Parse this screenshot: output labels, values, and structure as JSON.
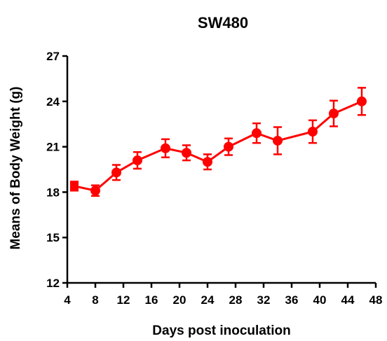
{
  "chart_data": {
    "type": "line",
    "title": "SW480",
    "xlabel": "Days post inoculation",
    "ylabel": "Means of Body Weight (g)",
    "xlim": [
      4,
      48
    ],
    "ylim": [
      12,
      27
    ],
    "xticks": [
      4,
      8,
      12,
      16,
      20,
      24,
      28,
      32,
      36,
      40,
      44,
      48
    ],
    "yticks": [
      12,
      15,
      18,
      21,
      24,
      27
    ],
    "grid": false,
    "legend": "none",
    "color": "#ff0000",
    "series": [
      {
        "x": [
          5,
          8,
          11,
          14,
          18,
          21,
          24,
          27,
          31,
          34,
          39,
          42,
          46
        ],
        "y": [
          18.4,
          18.1,
          19.3,
          20.1,
          20.9,
          20.6,
          20.0,
          21.0,
          21.9,
          21.4,
          22.0,
          23.2,
          24.0
        ],
        "err": [
          0.3,
          0.35,
          0.5,
          0.55,
          0.6,
          0.5,
          0.5,
          0.55,
          0.65,
          0.9,
          0.75,
          0.85,
          0.9
        ]
      }
    ]
  }
}
